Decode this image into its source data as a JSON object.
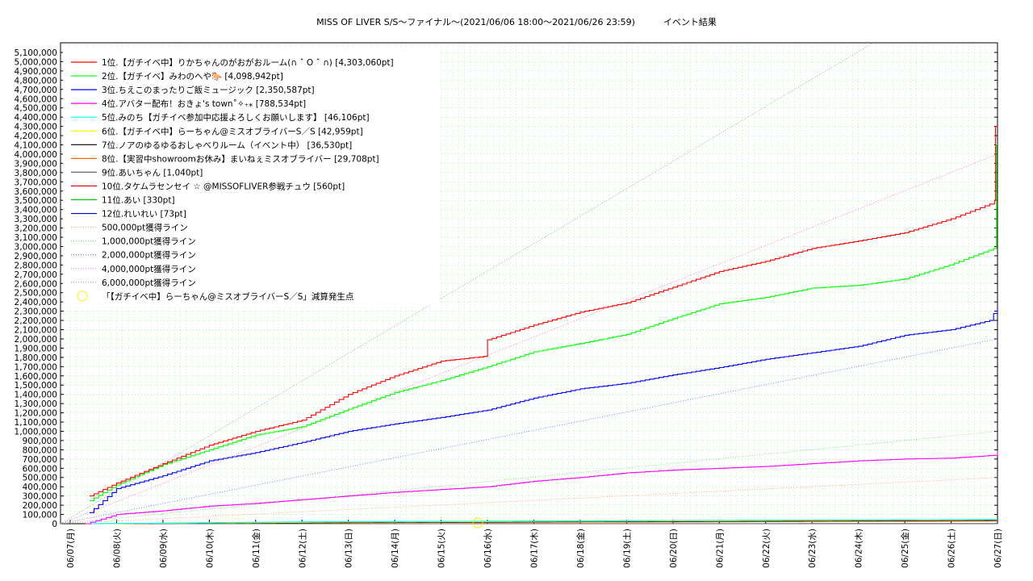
{
  "title": {
    "main": "MISS OF LIVER S/S〜ファイナル〜(2021/06/06 18:00〜2021/06/26 23:59)",
    "suffix": "イベント結果"
  },
  "chart_data": {
    "type": "line",
    "title": "MISS OF LIVER S/S〜ファイナル〜(2021/06/06 18:00〜2021/06/26 23:59)　イベント結果",
    "xlabel": "",
    "ylabel": "",
    "x_ticks": [
      "06/07(月)",
      "06/08(火)",
      "06/09(水)",
      "06/10(木)",
      "06/11(金)",
      "06/12(土)",
      "06/13(日)",
      "06/14(月)",
      "06/15(火)",
      "06/16(水)",
      "06/17(木)",
      "06/18(金)",
      "06/19(土)",
      "06/20(日)",
      "06/21(月)",
      "06/22(火)",
      "06/23(水)",
      "06/24(木)",
      "06/25(金)",
      "06/26(土)",
      "06/27(日)"
    ],
    "x_range": [
      "2021-06-07 00:00",
      "2021-06-27 00:00"
    ],
    "ylim": [
      0,
      5100000
    ],
    "y_tick_step": 100000,
    "grid": true,
    "legend_position": "top-left",
    "series": [
      {
        "name": "1位.【ガチイベ中】りかちゃんのがおがおルーム(∩ ˆ O ˆ ∩) [4,303,060pt]",
        "color": "#ff0000",
        "points": [
          [
            "2021-06-07 10:00",
            300000
          ],
          [
            "2021-06-08 00:00",
            440000
          ],
          [
            "2021-06-09 00:00",
            650000
          ],
          [
            "2021-06-10 00:00",
            850000
          ],
          [
            "2021-06-11 00:00",
            1000000
          ],
          [
            "2021-06-12 00:00",
            1120000
          ],
          [
            "2021-06-13 00:00",
            1400000
          ],
          [
            "2021-06-14 00:00",
            1600000
          ],
          [
            "2021-06-15 00:00",
            1760000
          ],
          [
            "2021-06-15 22:00",
            1810000
          ],
          [
            "2021-06-16 00:00",
            1990000
          ],
          [
            "2021-06-17 00:00",
            2150000
          ],
          [
            "2021-06-18 00:00",
            2290000
          ],
          [
            "2021-06-19 00:00",
            2390000
          ],
          [
            "2021-06-20 00:00",
            2560000
          ],
          [
            "2021-06-21 00:00",
            2730000
          ],
          [
            "2021-06-22 00:00",
            2840000
          ],
          [
            "2021-06-23 00:00",
            2980000
          ],
          [
            "2021-06-24 00:00",
            3060000
          ],
          [
            "2021-06-25 00:00",
            3150000
          ],
          [
            "2021-06-26 00:00",
            3300000
          ],
          [
            "2021-06-26 20:00",
            3460000
          ],
          [
            "2021-06-26 22:30",
            3500000
          ],
          [
            "2021-06-26 23:00",
            4300000
          ],
          [
            "2021-06-27 00:00",
            4303060
          ]
        ]
      },
      {
        "name": "2位.【ガチイベ】みわのへや🐎 [4,098,942pt]",
        "color": "#00ff00",
        "points": [
          [
            "2021-06-07 10:00",
            250000
          ],
          [
            "2021-06-08 00:00",
            420000
          ],
          [
            "2021-06-09 00:00",
            640000
          ],
          [
            "2021-06-10 00:00",
            800000
          ],
          [
            "2021-06-11 00:00",
            960000
          ],
          [
            "2021-06-12 00:00",
            1050000
          ],
          [
            "2021-06-13 00:00",
            1240000
          ],
          [
            "2021-06-14 00:00",
            1420000
          ],
          [
            "2021-06-15 00:00",
            1550000
          ],
          [
            "2021-06-16 00:00",
            1700000
          ],
          [
            "2021-06-17 00:00",
            1860000
          ],
          [
            "2021-06-18 00:00",
            1950000
          ],
          [
            "2021-06-19 00:00",
            2050000
          ],
          [
            "2021-06-20 00:00",
            2220000
          ],
          [
            "2021-06-21 00:00",
            2380000
          ],
          [
            "2021-06-22 00:00",
            2450000
          ],
          [
            "2021-06-23 00:00",
            2550000
          ],
          [
            "2021-06-24 00:00",
            2580000
          ],
          [
            "2021-06-25 00:00",
            2650000
          ],
          [
            "2021-06-25 23:00",
            2800000
          ],
          [
            "2021-06-26 22:00",
            2980000
          ],
          [
            "2021-06-26 23:30",
            4098942
          ],
          [
            "2021-06-27 00:00",
            4098942
          ]
        ]
      },
      {
        "name": "3位.ちえこのまったりご飯ミュージック [2,350,587pt]",
        "color": "#0000ff",
        "points": [
          [
            "2021-06-07 10:00",
            120000
          ],
          [
            "2021-06-08 00:00",
            380000
          ],
          [
            "2021-06-09 00:00",
            520000
          ],
          [
            "2021-06-10 00:00",
            680000
          ],
          [
            "2021-06-11 00:00",
            770000
          ],
          [
            "2021-06-12 00:00",
            880000
          ],
          [
            "2021-06-13 00:00",
            1000000
          ],
          [
            "2021-06-14 00:00",
            1080000
          ],
          [
            "2021-06-15 00:00",
            1150000
          ],
          [
            "2021-06-16 00:00",
            1230000
          ],
          [
            "2021-06-17 00:00",
            1360000
          ],
          [
            "2021-06-18 00:00",
            1460000
          ],
          [
            "2021-06-19 00:00",
            1520000
          ],
          [
            "2021-06-20 00:00",
            1610000
          ],
          [
            "2021-06-21 00:00",
            1690000
          ],
          [
            "2021-06-22 00:00",
            1780000
          ],
          [
            "2021-06-23 00:00",
            1850000
          ],
          [
            "2021-06-24 00:00",
            1920000
          ],
          [
            "2021-06-25 00:00",
            2040000
          ],
          [
            "2021-06-26 00:00",
            2100000
          ],
          [
            "2021-06-26 20:00",
            2200000
          ],
          [
            "2021-06-27 00:00",
            2350587
          ]
        ]
      },
      {
        "name": "4位.アバター配布！おきょ's town˚✧₊⁎ [788,534pt]",
        "color": "#ff00ff",
        "points": [
          [
            "2021-06-07 08:00",
            0
          ],
          [
            "2021-06-08 00:00",
            100000
          ],
          [
            "2021-06-09 00:00",
            140000
          ],
          [
            "2021-06-10 00:00",
            190000
          ],
          [
            "2021-06-11 00:00",
            220000
          ],
          [
            "2021-06-12 00:00",
            260000
          ],
          [
            "2021-06-13 00:00",
            300000
          ],
          [
            "2021-06-14 00:00",
            340000
          ],
          [
            "2021-06-15 00:00",
            370000
          ],
          [
            "2021-06-16 00:00",
            400000
          ],
          [
            "2021-06-17 00:00",
            460000
          ],
          [
            "2021-06-18 00:00",
            500000
          ],
          [
            "2021-06-19 00:00",
            550000
          ],
          [
            "2021-06-20 00:00",
            580000
          ],
          [
            "2021-06-21 00:00",
            600000
          ],
          [
            "2021-06-22 00:00",
            620000
          ],
          [
            "2021-06-23 00:00",
            650000
          ],
          [
            "2021-06-24 00:00",
            680000
          ],
          [
            "2021-06-25 00:00",
            700000
          ],
          [
            "2021-06-26 00:00",
            710000
          ],
          [
            "2021-06-26 22:00",
            740000
          ],
          [
            "2021-06-27 00:00",
            788534
          ]
        ]
      },
      {
        "name": "5位.みのち【ガチイベ参加中応援よろしくお願いします】 [46,106pt]",
        "color": "#00ffff",
        "points": [
          [
            "2021-06-07 10:00",
            0
          ],
          [
            "2021-06-12 00:00",
            20000
          ],
          [
            "2021-06-20 00:00",
            35000
          ],
          [
            "2021-06-27 00:00",
            46106
          ]
        ]
      },
      {
        "name": "6位.【ガチイベ中】らーちゃん@ミスオブライバーS／S [42,959pt]",
        "color": "#ffff00",
        "points": [
          [
            "2021-06-07 10:00",
            0
          ],
          [
            "2021-06-13 00:00",
            18000
          ],
          [
            "2021-06-21 00:00",
            32000
          ],
          [
            "2021-06-27 00:00",
            42959
          ]
        ]
      },
      {
        "name": "7位.ノアのゆるゆるおしゃべりルーム（イベント中） [36,530pt]",
        "color": "#000000",
        "points": [
          [
            "2021-06-07 10:00",
            0
          ],
          [
            "2021-06-14 00:00",
            15000
          ],
          [
            "2021-06-22 00:00",
            28000
          ],
          [
            "2021-06-27 00:00",
            36530
          ]
        ]
      },
      {
        "name": "8位.【実習中showroomお休み】まいねぇミスオブライバー [29,708pt]",
        "color": "#ff6600",
        "points": [
          [
            "2021-06-07 10:00",
            0
          ],
          [
            "2021-06-14 00:00",
            12000
          ],
          [
            "2021-06-22 00:00",
            22000
          ],
          [
            "2021-06-27 00:00",
            29708
          ]
        ]
      },
      {
        "name": "9位.あいちゃん [1,040pt]",
        "color": "#666666",
        "points": [
          [
            "2021-06-07 10:00",
            0
          ],
          [
            "2021-06-27 00:00",
            1040
          ]
        ]
      },
      {
        "name": "10位.タケムラセンセイ ☆ @MISSOFLIVER参戦チュウ [560pt]",
        "color": "#cc0000",
        "points": [
          [
            "2021-06-07 10:00",
            0
          ],
          [
            "2021-06-27 00:00",
            560
          ]
        ]
      },
      {
        "name": "11位.あい [330pt]",
        "color": "#00cc00",
        "points": [
          [
            "2021-06-07 10:00",
            0
          ],
          [
            "2021-06-27 00:00",
            330
          ]
        ]
      },
      {
        "name": "12位.れいれい [73pt]",
        "color": "#0000cc",
        "points": [
          [
            "2021-06-07 10:00",
            0
          ],
          [
            "2021-06-27 00:00",
            73
          ]
        ]
      }
    ],
    "reference_lines": [
      {
        "name": "500,000pt獲得ライン",
        "color": "#ff9966",
        "from": [
          "2021-06-06 18:00",
          0
        ],
        "to": [
          "2021-06-27 00:00",
          500000
        ]
      },
      {
        "name": "1,000,000pt獲得ライン",
        "color": "#66dd66",
        "from": [
          "2021-06-06 18:00",
          0
        ],
        "to": [
          "2021-06-27 00:00",
          1000000
        ]
      },
      {
        "name": "2,000,000pt獲得ライン",
        "color": "#6666ff",
        "from": [
          "2021-06-06 18:00",
          0
        ],
        "to": [
          "2021-06-27 00:00",
          2000000
        ]
      },
      {
        "name": "4,000,000pt獲得ライン",
        "color": "#ff66cc",
        "from": [
          "2021-06-06 18:00",
          0
        ],
        "to": [
          "2021-06-27 00:00",
          4000000
        ]
      },
      {
        "name": "6,000,000pt獲得ライン",
        "color": "#999999",
        "from": [
          "2021-06-06 18:00",
          0
        ],
        "to": [
          "2021-06-27 00:00",
          6000000
        ]
      }
    ],
    "markers": [
      {
        "name": "「【ガチイベ中】らーちゃん@ミスオブライバーS／S」減算発生点",
        "color": "#ffee00",
        "at": [
          "2021-06-15 19:00",
          0
        ]
      }
    ]
  }
}
